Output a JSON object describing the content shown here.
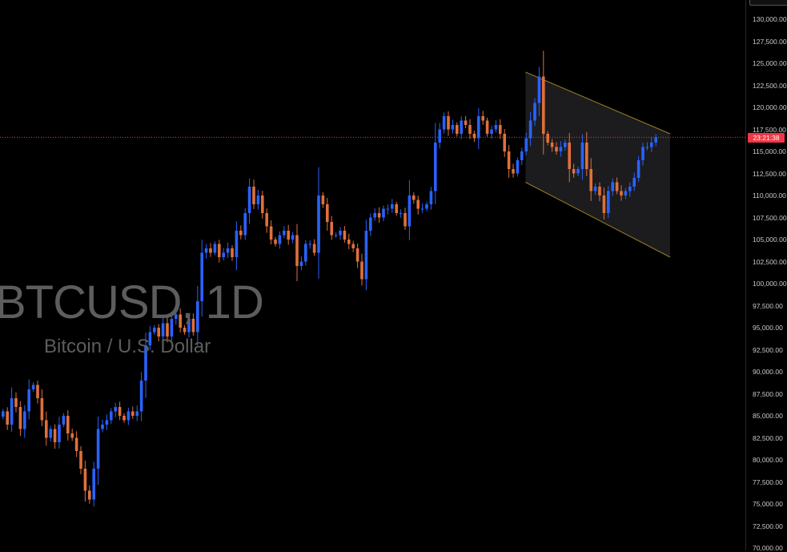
{
  "watermark": {
    "symbol": "BTCUSD, 1D",
    "name": "Bitcoin / U.S. Dollar"
  },
  "price_tag": {
    "label": "23:21:38",
    "value": 116600,
    "color": "#f23645"
  },
  "colors": {
    "up": "#2962ff",
    "down": "#e0703a",
    "channel_fill": "#1c1c1e",
    "channel_line": "#c9a227",
    "price_line": "#f23645"
  },
  "chart_data": {
    "type": "candlestick",
    "symbol": "BTCUSD",
    "timeframe": "1D",
    "ylim": [
      70000,
      130000
    ],
    "y_ticks": [
      "130,000.00",
      "127,500.00",
      "125,000.00",
      "122,500.00",
      "120,000.00",
      "117,500.00",
      "115,000.00",
      "112,500.00",
      "110,000.00",
      "107,500.00",
      "105,000.00",
      "102,500.00",
      "100,000.00",
      "97,500.00",
      "95,000.00",
      "92,500.00",
      "90,000.00",
      "87,500.00",
      "85,000.00",
      "82,500.00",
      "80,000.00",
      "77,500.00",
      "75,000.00",
      "72,500.00",
      "70,000.00"
    ],
    "y_tick_values": [
      130000,
      127500,
      125000,
      122500,
      120000,
      117500,
      115000,
      112500,
      110000,
      107500,
      105000,
      102500,
      100000,
      97500,
      95000,
      92500,
      90000,
      87500,
      85000,
      82500,
      80000,
      77500,
      75000,
      72500,
      70000
    ],
    "closes": [
      85500,
      84000,
      87000,
      86000,
      83500,
      85500,
      88000,
      88500,
      87000,
      84500,
      82500,
      83500,
      82000,
      84000,
      85000,
      83000,
      82500,
      81000,
      79000,
      76500,
      75500,
      79000,
      83500,
      84000,
      84500,
      85500,
      86000,
      85000,
      84500,
      85500,
      85000,
      85500,
      89000,
      93000,
      94500,
      95000,
      94000,
      95500,
      94000,
      96000,
      96500,
      95000,
      94500,
      96000,
      94500,
      98000,
      103500,
      104000,
      103500,
      104500,
      103000,
      103500,
      104000,
      103000,
      106000,
      105500,
      108000,
      111000,
      109000,
      110000,
      108000,
      106500,
      105000,
      104500,
      105500,
      106000,
      105000,
      105500,
      102000,
      102500,
      104500,
      104500,
      103500,
      110000,
      109000,
      107000,
      105500,
      105500,
      106000,
      105000,
      104500,
      104000,
      102500,
      100500,
      106000,
      107500,
      108000,
      107500,
      108500,
      108500,
      109000,
      108000,
      108000,
      106500,
      110000,
      109500,
      108500,
      108500,
      109000,
      110500,
      116000,
      117500,
      119000,
      117500,
      118000,
      117000,
      118500,
      118000,
      117000,
      116500,
      119000,
      118500,
      117000,
      117500,
      118000,
      117000,
      115000,
      113000,
      112500,
      114000,
      115000,
      116500,
      118500,
      120500,
      123500,
      117000,
      116000,
      115500,
      115000,
      115500,
      116000,
      113000,
      112500,
      113000,
      116000,
      113000,
      110500,
      111000,
      110000,
      108000,
      110500,
      111500,
      110500,
      110000,
      110500,
      111000,
      112000,
      114000,
      115500,
      115500,
      116000,
      116600
    ],
    "channel": {
      "upper": [
        [
          125000,
          124000
        ],
        [
          126000,
          117000
        ]
      ],
      "lower": [
        [
          125000,
          111500
        ],
        [
          126000,
          103000
        ]
      ]
    }
  }
}
